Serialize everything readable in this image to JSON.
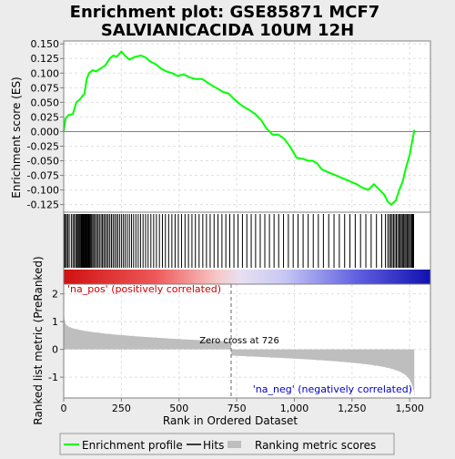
{
  "title_line1": "Enrichment plot: GSE85871 MCF7",
  "title_line2": "SALVIANICACIDA 10UM 12H",
  "colors": {
    "enrichment_line": "#00ff00",
    "hits": "#000000",
    "ranking_fill": "#bebebe",
    "pos_label": "#cc0000",
    "neg_label": "#0000cc"
  },
  "chart_data": [
    {
      "type": "line",
      "name": "enrichment-score-plot",
      "ylabel": "Enrichment score (ES)",
      "ylim": [
        -0.138,
        0.155
      ],
      "xlim": [
        0,
        1590
      ],
      "yticks": [
        0.15,
        0.125,
        0.1,
        0.075,
        0.05,
        0.025,
        0.0,
        -0.025,
        -0.05,
        -0.075,
        -0.1,
        -0.125
      ],
      "ytick_labels": [
        "0.150",
        "0.125",
        "0.100",
        "0.075",
        "0.050",
        "0.025",
        "0.000",
        "-0.025",
        "-0.050",
        "-0.075",
        "-0.100",
        "-0.125"
      ],
      "grid": true,
      "series": [
        {
          "name": "Enrichment profile",
          "x": [
            0,
            8,
            20,
            40,
            55,
            70,
            90,
            100,
            110,
            125,
            140,
            160,
            180,
            200,
            215,
            230,
            250,
            265,
            285,
            310,
            335,
            355,
            375,
            400,
            425,
            445,
            470,
            495,
            520,
            545,
            570,
            600,
            630,
            660,
            690,
            715,
            740,
            770,
            800,
            830,
            855,
            880,
            905,
            930,
            955,
            980,
            1010,
            1040,
            1060,
            1080,
            1100,
            1120,
            1150,
            1180,
            1210,
            1240,
            1270,
            1290,
            1320,
            1345,
            1370,
            1390,
            1405,
            1420,
            1440,
            1455,
            1470,
            1485,
            1500,
            1512,
            1520
          ],
          "y": [
            0.0,
            0.022,
            0.028,
            0.03,
            0.05,
            0.055,
            0.065,
            0.09,
            0.1,
            0.105,
            0.103,
            0.108,
            0.113,
            0.125,
            0.13,
            0.128,
            0.137,
            0.13,
            0.123,
            0.128,
            0.13,
            0.127,
            0.12,
            0.115,
            0.107,
            0.103,
            0.1,
            0.095,
            0.098,
            0.093,
            0.09,
            0.09,
            0.082,
            0.075,
            0.068,
            0.065,
            0.055,
            0.045,
            0.038,
            0.03,
            0.02,
            0.005,
            -0.005,
            -0.005,
            -0.012,
            -0.025,
            -0.045,
            -0.047,
            -0.05,
            -0.05,
            -0.055,
            -0.065,
            -0.07,
            -0.075,
            -0.08,
            -0.085,
            -0.09,
            -0.095,
            -0.1,
            -0.09,
            -0.1,
            -0.108,
            -0.12,
            -0.125,
            -0.118,
            -0.1,
            -0.085,
            -0.06,
            -0.04,
            -0.015,
            0.002
          ]
        }
      ]
    },
    {
      "type": "bar",
      "name": "hits-barcode",
      "hit_ranks": [
        3,
        7,
        12,
        18,
        24,
        33,
        40,
        46,
        52,
        57,
        62,
        66,
        70,
        74,
        77,
        80,
        83,
        86,
        89,
        92,
        95,
        98,
        101,
        104,
        107,
        110,
        113,
        117,
        121,
        126,
        131,
        137,
        143,
        149,
        155,
        162,
        168,
        174,
        180,
        187,
        193,
        200,
        207,
        214,
        221,
        228,
        235,
        243,
        251,
        259,
        267,
        276,
        285,
        294,
        303,
        313,
        323,
        333,
        344,
        355,
        366,
        378,
        390,
        402,
        415,
        428,
        441,
        455,
        469,
        483,
        497,
        511,
        526,
        541,
        556,
        571,
        587,
        603,
        619,
        635,
        652,
        669,
        686,
        703,
        720,
        738,
        756,
        775,
        794,
        813,
        832,
        852,
        872,
        892,
        912,
        932,
        953,
        974,
        995,
        1016,
        1038,
        1060,
        1082,
        1104,
        1126,
        1149,
        1172,
        1195,
        1218,
        1241,
        1264,
        1287,
        1310,
        1333,
        1356,
        1379,
        1395,
        1405,
        1412,
        1418,
        1424,
        1430,
        1436,
        1442,
        1448,
        1454,
        1459,
        1464,
        1469,
        1474,
        1479,
        1484,
        1489,
        1494,
        1499,
        1504,
        1509,
        1513,
        1517
      ]
    },
    {
      "type": "area",
      "name": "ranked-list-metric",
      "ylabel": "Ranked list metric (PreRanked)",
      "xlabel": "Rank in Ordered Dataset",
      "xlim": [
        0,
        1590
      ],
      "ylim": [
        -1.75,
        2.35
      ],
      "xticks": [
        0,
        250,
        500,
        750,
        1000,
        1250,
        1500
      ],
      "xtick_labels": [
        "0",
        "250",
        "500",
        "750",
        "1,000",
        "1,250",
        "1,500"
      ],
      "yticks": [
        2,
        1,
        0,
        -1
      ],
      "ytick_labels": [
        "2",
        "1",
        "0",
        "-1"
      ],
      "x": [
        0,
        3,
        10,
        30,
        60,
        100,
        150,
        200,
        300,
        400,
        500,
        600,
        700,
        726,
        727,
        800,
        900,
        1000,
        1100,
        1200,
        1300,
        1350,
        1400,
        1440,
        1470,
        1490,
        1505,
        1515,
        1520
      ],
      "values": [
        1.5,
        1.05,
        0.88,
        0.78,
        0.72,
        0.65,
        0.6,
        0.55,
        0.48,
        0.42,
        0.37,
        0.33,
        0.29,
        0.27,
        -0.22,
        -0.25,
        -0.29,
        -0.33,
        -0.38,
        -0.44,
        -0.52,
        -0.58,
        -0.65,
        -0.74,
        -0.85,
        -0.98,
        -1.15,
        -1.4,
        -1.62
      ],
      "zero_cross_rank": 726,
      "zero_cross_label": "Zero cross at 726",
      "pos_label": "'na_pos' (positively correlated)",
      "neg_label": "'na_neg' (negatively correlated)"
    }
  ],
  "legend": {
    "items": [
      {
        "label": "Enrichment profile",
        "color": "#00ff00"
      },
      {
        "label": "Hits",
        "color": "#000000"
      },
      {
        "label": "Ranking metric scores",
        "color": "#bebebe"
      }
    ]
  }
}
